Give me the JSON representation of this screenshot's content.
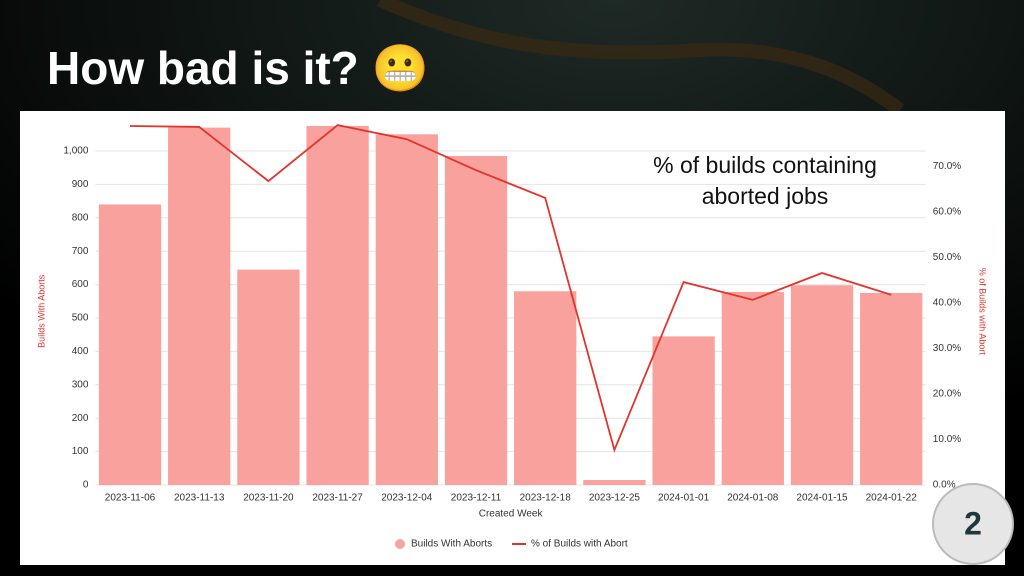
{
  "title": "How bad is it? 😬",
  "page_number": "2",
  "chart_data": {
    "type": "bar",
    "annotation": [
      "% of builds containing",
      "aborted jobs"
    ],
    "x_label": "Created Week",
    "y_label": "Builds With Aborts",
    "y2_label": "% of Builds with Abort",
    "categories": [
      "2023-11-06",
      "2023-11-13",
      "2023-11-20",
      "2023-11-27",
      "2023-12-04",
      "2023-12-11",
      "2023-12-18",
      "2023-12-25",
      "2024-01-01",
      "2024-01-08",
      "2024-01-15",
      "2024-01-22"
    ],
    "series": [
      {
        "name": "Builds With Aborts",
        "type": "bar",
        "color": "#f9a19d",
        "values": [
          840,
          1070,
          645,
          1075,
          1050,
          985,
          580,
          15,
          445,
          578,
          598,
          575
        ]
      },
      {
        "name": "% of Builds with Abort",
        "type": "line",
        "axis": "y2",
        "color": "#e3342c",
        "values": [
          78.9,
          78.7,
          66.8,
          79.1,
          76.0,
          69.2,
          63.1,
          7.7,
          44.6,
          40.7,
          46.6,
          41.8
        ]
      }
    ],
    "ylim": [
      0,
      1100
    ],
    "yticks": [
      0,
      100,
      200,
      300,
      400,
      500,
      600,
      700,
      800,
      900,
      {
        "value": 1000,
        "label": "1,000"
      }
    ],
    "y2lim": [
      0,
      80.75
    ],
    "y2ticks": [
      {
        "value": 0,
        "label": "0.0%"
      },
      {
        "value": 10,
        "label": "10.0%"
      },
      {
        "value": 20,
        "label": "20.0%"
      },
      {
        "value": 30,
        "label": "30.0%"
      },
      {
        "value": 40,
        "label": "40.0%"
      },
      {
        "value": 50,
        "label": "50.0%"
      },
      {
        "value": 60,
        "label": "60.0%"
      },
      {
        "value": 70,
        "label": "70.0%"
      }
    ],
    "grid": true,
    "legend": "bottom"
  }
}
